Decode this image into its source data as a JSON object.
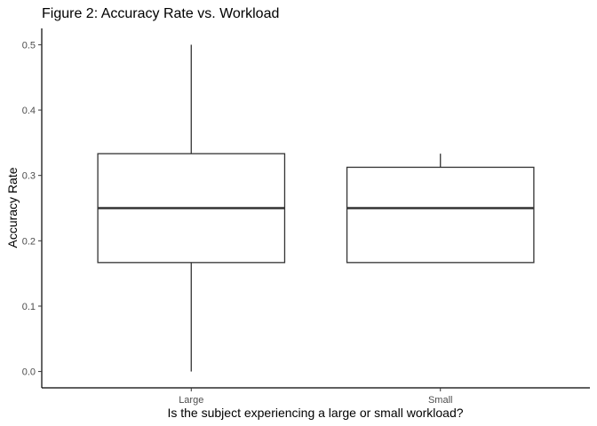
{
  "chart_data": {
    "type": "boxplot",
    "title": "Figure 2: Accuracy Rate vs. Workload",
    "xlabel": "Is the subject experiencing a large or small workload?",
    "ylabel": "Accuracy Rate",
    "categories": [
      "Large",
      "Small"
    ],
    "boxes": [
      {
        "category": "Large",
        "min": 0.0,
        "q1": 0.1667,
        "median": 0.25,
        "q3": 0.3333,
        "max": 0.5
      },
      {
        "category": "Small",
        "min": 0.1667,
        "q1": 0.1667,
        "median": 0.25,
        "q3": 0.3125,
        "max": 0.3333
      }
    ],
    "ylim": [
      -0.025,
      0.525
    ],
    "yticks": [
      0.0,
      0.1,
      0.2,
      0.3,
      0.4,
      0.5
    ],
    "ytick_labels": [
      "0.0",
      "0.1",
      "0.2",
      "0.3",
      "0.4",
      "0.5"
    ],
    "grid": false,
    "legend": "none"
  }
}
